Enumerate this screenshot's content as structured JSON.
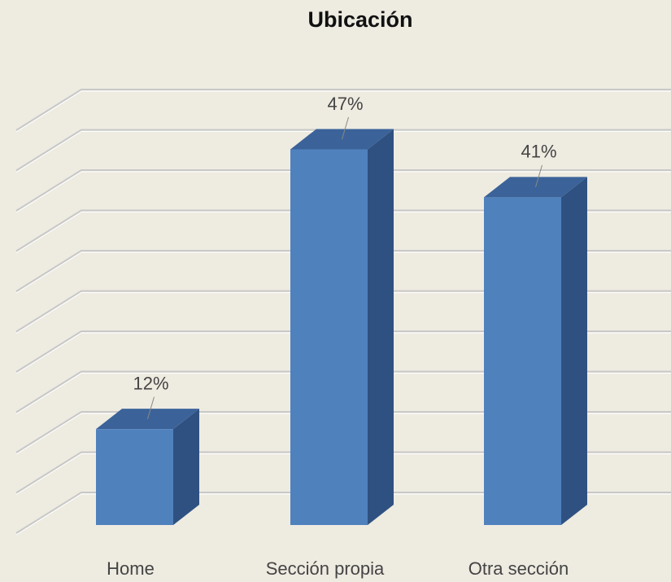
{
  "chart_data": {
    "type": "bar3d",
    "title": "Ubicación",
    "categories": [
      "Home",
      "Sección propia",
      "Otra sección"
    ],
    "values": [
      12,
      47,
      41
    ],
    "value_labels": [
      "12%",
      "47%",
      "41%"
    ],
    "color": "#4f81bd",
    "ylim": [
      0,
      50
    ],
    "yticks": [
      0,
      5,
      10,
      15,
      20,
      25,
      30,
      35,
      40,
      45,
      50
    ],
    "grid": true
  }
}
